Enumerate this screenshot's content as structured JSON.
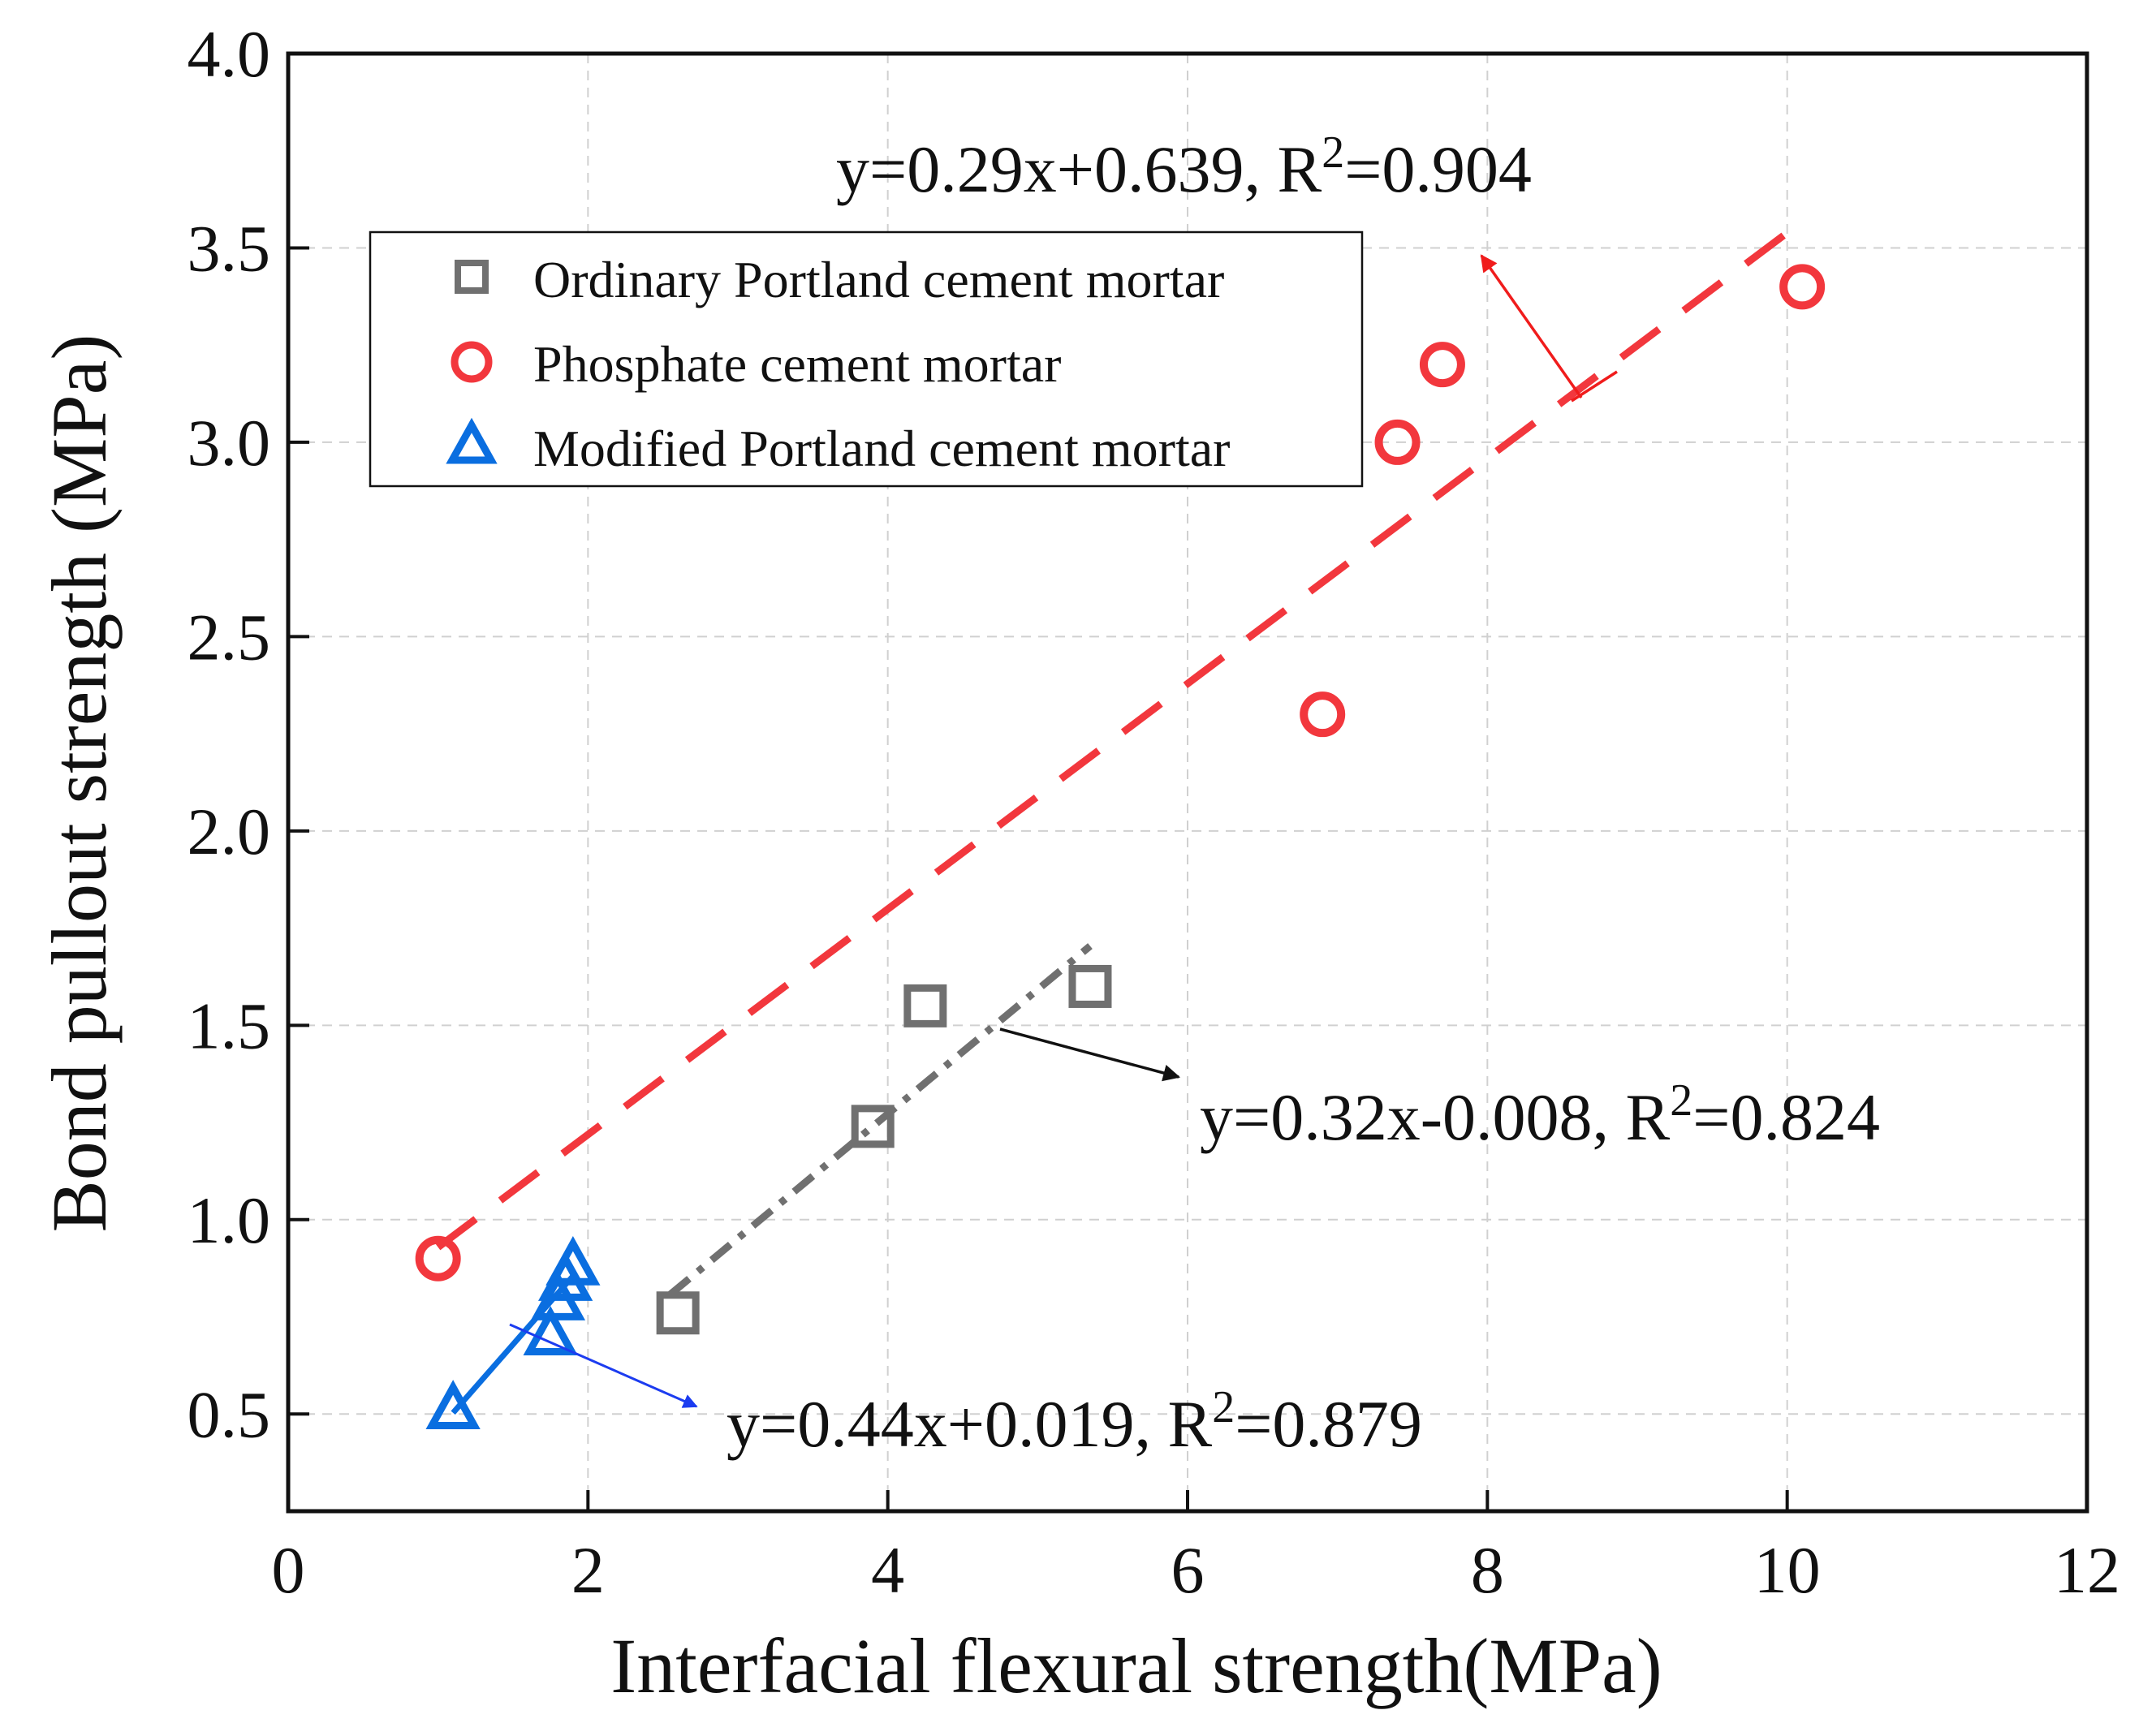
{
  "chart_data": {
    "type": "scatter",
    "title": "",
    "xlabel": "Interfacial flexural strength(MPa)",
    "ylabel": "Bond pullout strength (MPa)",
    "xlim": [
      0,
      12
    ],
    "ylim": [
      0.25,
      4.0
    ],
    "xticks": [
      0,
      2,
      4,
      6,
      8,
      10,
      12
    ],
    "xtick_labels": [
      "0",
      "2",
      "4",
      "6",
      "8",
      "10",
      "12"
    ],
    "yticks": [
      0.5,
      1.0,
      1.5,
      2.0,
      2.5,
      3.0,
      3.5,
      4.0
    ],
    "ytick_labels": [
      "0.5",
      "1.0",
      "1.5",
      "2.0",
      "2.5",
      "3.0",
      "3.5",
      "4.0"
    ],
    "grid": true,
    "legend_position": "upper-left",
    "series": [
      {
        "name": "Ordinary Portland cement mortar",
        "marker": "square",
        "color": "#707070",
        "x": [
          2.6,
          3.9,
          4.25,
          5.35
        ],
        "y": [
          0.76,
          1.24,
          1.55,
          1.6
        ],
        "fit": {
          "slope": 0.32,
          "intercept": -0.008,
          "x_range": [
            2.55,
            5.35
          ],
          "style": "dash-dot",
          "equation": "y=0.32x-0.008, R",
          "r2_exp": "2",
          "r2_tail": "=0.824"
        }
      },
      {
        "name": "Phosphate cement mortar",
        "marker": "circle",
        "color": "#f2373d",
        "x": [
          1.0,
          6.9,
          7.4,
          7.7,
          10.1
        ],
        "y": [
          0.9,
          2.3,
          3.0,
          3.2,
          3.4
        ],
        "fit": {
          "slope": 0.29,
          "intercept": 0.639,
          "x_range": [
            1.0,
            10.0
          ],
          "style": "dashed",
          "equation": "y=0.29x+0.639, R",
          "r2_exp": "2",
          "r2_tail": "=0.904"
        }
      },
      {
        "name": "Modified Portland cement mortar",
        "marker": "triangle",
        "color": "#0a6ee0",
        "x": [
          1.1,
          1.75,
          1.8,
          1.85,
          1.9
        ],
        "y": [
          0.51,
          0.7,
          0.79,
          0.84,
          0.88
        ],
        "fit": {
          "slope": 0.44,
          "intercept": 0.019,
          "x_range": [
            1.1,
            1.9
          ],
          "style": "solid",
          "equation": "y=0.44x+0.019, R",
          "r2_exp": "2",
          "r2_tail": "=0.879"
        }
      }
    ]
  }
}
